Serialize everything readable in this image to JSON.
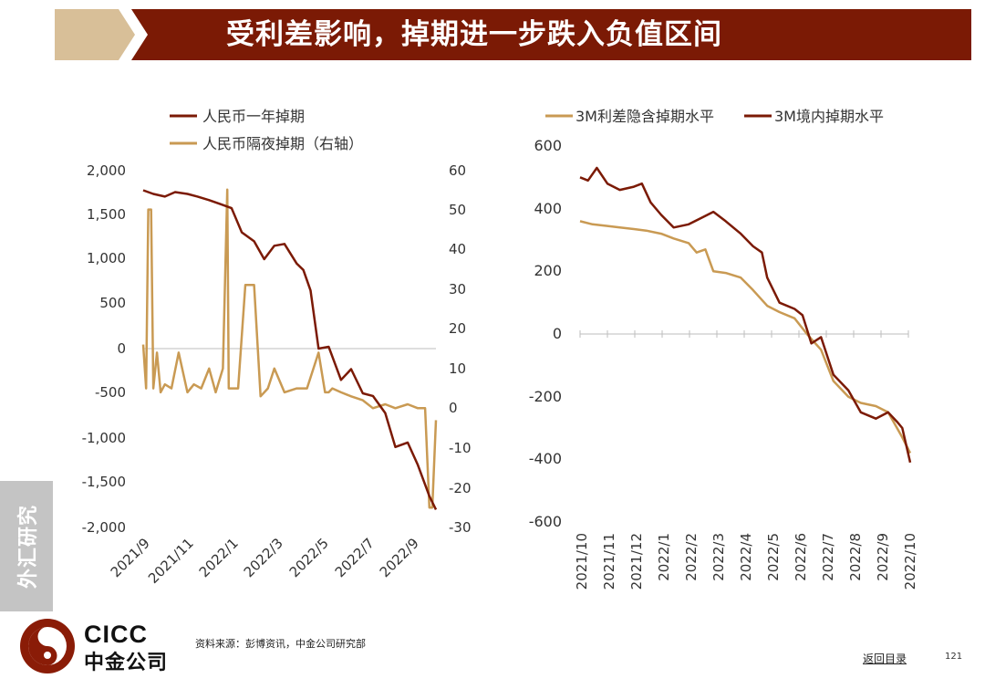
{
  "header": {
    "title": "受利差影响，掉期进一步跌入负值区间"
  },
  "colors": {
    "title_bg": "#7b1a05",
    "title_accent": "#d8bf98",
    "series_dark": "#7b1a05",
    "series_light": "#c99a53"
  },
  "side_tab": {
    "label": "外汇研究"
  },
  "logo": {
    "en": "CICC",
    "cn": "中金公司"
  },
  "footer": {
    "source": "资料来源：彭博资讯，中金公司研究部",
    "back_link": "返回目录",
    "page_number": "121"
  },
  "chart_data": [
    {
      "type": "line",
      "series": [
        {
          "name": "人民币一年掉期",
          "axis": "left",
          "x": [
            "2021/9/1",
            "2021/9/15",
            "2021/10/1",
            "2021/10/15",
            "2021/11/1",
            "2021/11/15",
            "2021/12/1",
            "2021/12/15",
            "2022/1/1",
            "2022/1/15",
            "2022/2/1",
            "2022/2/15",
            "2022/3/1",
            "2022/3/15",
            "2022/4/1",
            "2022/4/10",
            "2022/4/20",
            "2022/5/1",
            "2022/5/15",
            "2022/6/1",
            "2022/6/15",
            "2022/7/1",
            "2022/7/15",
            "2022/8/1",
            "2022/8/15",
            "2022/9/1",
            "2022/9/15",
            "2022/10/1",
            "2022/10/10"
          ],
          "values": [
            1770,
            1730,
            1700,
            1750,
            1730,
            1700,
            1660,
            1620,
            1570,
            1300,
            1200,
            1000,
            1150,
            1170,
            950,
            880,
            650,
            0,
            20,
            -350,
            -230,
            -500,
            -530,
            -720,
            -1100,
            -1050,
            -1300,
            -1650,
            -1800
          ]
        },
        {
          "name": "人民币隔夜掉期（右轴）",
          "axis": "right",
          "x": [
            "2021/9/1",
            "2021/9/5",
            "2021/9/8",
            "2021/9/12",
            "2021/9/15",
            "2021/9/20",
            "2021/9/25",
            "2021/10/1",
            "2021/10/10",
            "2021/10/20",
            "2021/11/1",
            "2021/11/10",
            "2021/11/20",
            "2021/12/1",
            "2021/12/10",
            "2021/12/20",
            "2021/12/26",
            "2021/12/28",
            "2022/1/1",
            "2022/1/10",
            "2022/1/20",
            "2022/2/1",
            "2022/2/10",
            "2022/2/20",
            "2022/3/1",
            "2022/3/15",
            "2022/4/1",
            "2022/4/15",
            "2022/5/1",
            "2022/5/10",
            "2022/5/15",
            "2022/5/20",
            "2022/6/1",
            "2022/6/15",
            "2022/7/1",
            "2022/7/15",
            "2022/8/1",
            "2022/8/15",
            "2022/9/1",
            "2022/9/15",
            "2022/9/25",
            "2022/10/1",
            "2022/10/5",
            "2022/10/10"
          ],
          "values": [
            16,
            5,
            50,
            50,
            5,
            14,
            4,
            6,
            5,
            14,
            4,
            6,
            5,
            10,
            4,
            10,
            55,
            5,
            5,
            5,
            31,
            31,
            3,
            5,
            10,
            4,
            5,
            5,
            14,
            4,
            4,
            5,
            4,
            3,
            2,
            0,
            1,
            0,
            1,
            0,
            0,
            -25,
            -25,
            -3
          ]
        }
      ],
      "left_axis": {
        "ylim": [
          -2000,
          2000
        ],
        "ticks": [
          "2,000",
          "1,500",
          "1,000",
          "500",
          "0",
          "-500",
          "-1,000",
          "-1,500",
          "-2,000"
        ]
      },
      "right_axis": {
        "ylim": [
          -30,
          60
        ],
        "ticks": [
          "60",
          "50",
          "40",
          "30",
          "20",
          "10",
          "0",
          "-10",
          "-20",
          "-30"
        ]
      },
      "x_ticks": [
        "2021/9",
        "2021/11",
        "2022/1",
        "2022/3",
        "2022/5",
        "2022/7",
        "2022/9"
      ],
      "legend": "top-left"
    },
    {
      "type": "line",
      "series": [
        {
          "name": "3M利差隐含掉期水平",
          "x": [
            "2021/10/1",
            "2021/10/15",
            "2021/11/1",
            "2021/11/15",
            "2021/12/1",
            "2021/12/15",
            "2022/1/1",
            "2022/1/15",
            "2022/2/1",
            "2022/2/10",
            "2022/2/20",
            "2022/3/1",
            "2022/3/15",
            "2022/4/1",
            "2022/4/15",
            "2022/5/1",
            "2022/5/15",
            "2022/6/1",
            "2022/6/15",
            "2022/7/1",
            "2022/7/15",
            "2022/8/1",
            "2022/8/15",
            "2022/9/1",
            "2022/9/15",
            "2022/10/1",
            "2022/10/10"
          ],
          "values": [
            360,
            350,
            345,
            340,
            335,
            330,
            320,
            305,
            290,
            260,
            270,
            200,
            195,
            180,
            140,
            90,
            70,
            50,
            0,
            -50,
            -150,
            -200,
            -220,
            -230,
            -250,
            -330,
            -380
          ]
        },
        {
          "name": "3M境内掉期水平",
          "x": [
            "2021/10/1",
            "2021/10/10",
            "2021/10/20",
            "2021/11/1",
            "2021/11/15",
            "2021/12/1",
            "2021/12/10",
            "2021/12/20",
            "2022/1/1",
            "2022/1/15",
            "2022/2/1",
            "2022/2/15",
            "2022/3/1",
            "2022/3/15",
            "2022/4/1",
            "2022/4/15",
            "2022/4/25",
            "2022/5/1",
            "2022/5/15",
            "2022/6/1",
            "2022/6/10",
            "2022/6/20",
            "2022/7/1",
            "2022/7/15",
            "2022/8/1",
            "2022/8/15",
            "2022/9/1",
            "2022/9/15",
            "2022/9/25",
            "2022/10/1",
            "2022/10/10"
          ],
          "values": [
            500,
            490,
            530,
            480,
            460,
            470,
            480,
            420,
            380,
            340,
            350,
            370,
            390,
            360,
            320,
            280,
            260,
            180,
            100,
            80,
            60,
            -30,
            -10,
            -130,
            -180,
            -250,
            -270,
            -250,
            -280,
            -300,
            -410
          ]
        }
      ],
      "ylim": [
        -600,
        600
      ],
      "y_ticks": [
        "600",
        "400",
        "200",
        "0",
        "-200",
        "-400",
        "-600"
      ],
      "x_ticks": [
        "2021/10",
        "2021/11",
        "2021/12",
        "2022/1",
        "2022/2",
        "2022/3",
        "2022/4",
        "2022/5",
        "2022/6",
        "2022/7",
        "2022/8",
        "2022/9",
        "2022/10"
      ],
      "legend": "top"
    }
  ]
}
